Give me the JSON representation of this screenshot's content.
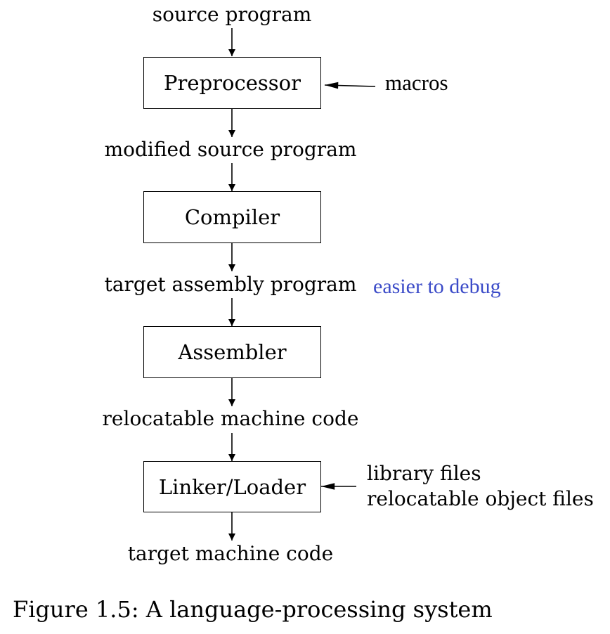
{
  "diagram": {
    "labels": {
      "source_program": "source program",
      "modified_source_program": "modified source program",
      "target_assembly_program": "target assembly program",
      "relocatable_machine_code": "relocatable machine code",
      "target_machine_code": "target machine code"
    },
    "boxes": {
      "preprocessor": "Preprocessor",
      "compiler": "Compiler",
      "assembler": "Assembler",
      "linker_loader": "Linker/Loader"
    },
    "side_inputs": {
      "macros": "macros",
      "library_files": "library files",
      "relocatable_object_files": "relocatable object files"
    },
    "annotation": {
      "text": "easier to debug",
      "color": "#3b4bc8"
    }
  },
  "caption": "Figure 1.5: A language-processing system"
}
